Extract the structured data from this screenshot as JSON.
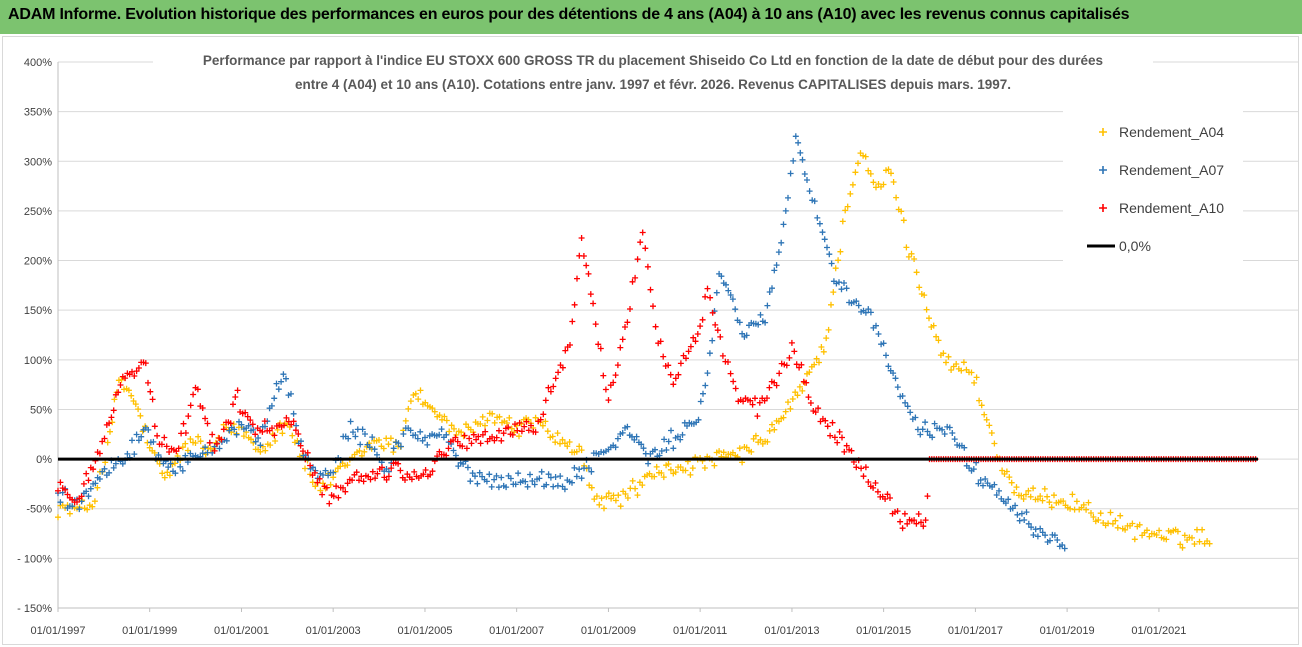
{
  "banner": {
    "title": "ADAM Informe. Evolution historique des performances en euros pour des détentions de 4 ans (A04) à 10 ans (A10) avec les revenus connus capitalisés"
  },
  "colors": {
    "banner_bg": "#7cc36f",
    "A04": "#ffc000",
    "A07": "#2e75b6",
    "A10": "#ff0000",
    "zero_line": "#000000"
  },
  "chart_data": {
    "type": "scatter",
    "title_lines": [
      "Performance par rapport à l'indice EU STOXX 600 GROSS TR  du placement Shiseido Co Ltd en fonction de la date de début pour des durées",
      "entre 4 (A04) et 10 ans (A10). Cotations entre janv. 1997 et févr. 2026. Revenus CAPITALISES depuis mars. 1997."
    ],
    "xlabel": "",
    "ylabel": "",
    "x_range": [
      "1997-01-01",
      "2023-03-01"
    ],
    "x_tick_labels": [
      "01/01/1997",
      "01/01/1999",
      "01/01/2001",
      "01/01/2003",
      "01/01/2005",
      "01/01/2007",
      "01/01/2009",
      "01/01/2011",
      "01/01/2013",
      "01/01/2015",
      "01/01/2017",
      "01/01/2019",
      "01/01/2021"
    ],
    "ylim": [
      -150,
      400
    ],
    "y_tick_labels": [
      "400%",
      "350%",
      "300%",
      "250%",
      "200%",
      "150%",
      "100%",
      "50%",
      "0%",
      "-50%",
      "- 100%",
      "- 150%"
    ],
    "grid": "horizontal",
    "legend_position": "top-right",
    "series": [
      {
        "name": "Rendement_A04",
        "marker": "+",
        "points": [
          [
            "1997-01-01",
            -48
          ],
          [
            "1997-06-01",
            -52
          ],
          [
            "1997-10-01",
            -45
          ],
          [
            "1998-02-01",
            10
          ],
          [
            "1998-05-01",
            80
          ],
          [
            "1998-07-01",
            70
          ],
          [
            "1998-10-01",
            50
          ],
          [
            "1999-01-01",
            10
          ],
          [
            "1999-05-01",
            -20
          ],
          [
            "1999-09-01",
            5
          ],
          [
            "2000-01-01",
            20
          ],
          [
            "2000-05-01",
            5
          ],
          [
            "2000-09-01",
            30
          ],
          [
            "2001-01-01",
            30
          ],
          [
            "2001-06-01",
            10
          ],
          [
            "2002-01-01",
            40
          ],
          [
            "2002-05-01",
            0
          ],
          [
            "2002-09-01",
            -30
          ],
          [
            "2003-01-01",
            -20
          ],
          [
            "2003-06-01",
            0
          ],
          [
            "2004-01-01",
            20
          ],
          [
            "2004-06-01",
            10
          ],
          [
            "2004-10-01",
            70
          ],
          [
            "2005-03-01",
            50
          ],
          [
            "2005-08-01",
            30
          ],
          [
            "2006-01-01",
            25
          ],
          [
            "2006-06-01",
            45
          ],
          [
            "2007-01-01",
            30
          ],
          [
            "2007-06-01",
            40
          ],
          [
            "2008-01-01",
            15
          ],
          [
            "2008-06-01",
            5
          ],
          [
            "2008-10-01",
            -45
          ],
          [
            "2009-03-01",
            -40
          ],
          [
            "2009-08-01",
            -30
          ],
          [
            "2010-01-01",
            -15
          ],
          [
            "2010-06-01",
            -10
          ],
          [
            "2011-01-01",
            -5
          ],
          [
            "2011-06-01",
            0
          ],
          [
            "2011-12-01",
            5
          ],
          [
            "2012-06-01",
            20
          ],
          [
            "2012-12-01",
            50
          ],
          [
            "2013-05-01",
            80
          ],
          [
            "2013-10-01",
            120
          ],
          [
            "2014-03-01",
            250
          ],
          [
            "2014-07-01",
            310
          ],
          [
            "2014-11-01",
            270
          ],
          [
            "2015-03-01",
            290
          ],
          [
            "2015-07-01",
            220
          ],
          [
            "2015-11-01",
            170
          ],
          [
            "2016-04-01",
            110
          ],
          [
            "2016-08-01",
            90
          ],
          [
            "2016-12-01",
            90
          ],
          [
            "2017-04-01",
            40
          ],
          [
            "2017-08-01",
            -10
          ],
          [
            "2018-01-01",
            -40
          ],
          [
            "2018-06-01",
            -40
          ],
          [
            "2018-12-01",
            -40
          ],
          [
            "2019-06-01",
            -50
          ],
          [
            "2020-01-01",
            -65
          ],
          [
            "2020-08-01",
            -72
          ],
          [
            "2021-03-01",
            -78
          ],
          [
            "2021-09-01",
            -80
          ],
          [
            "2022-03-01",
            -77
          ]
        ]
      },
      {
        "name": "Rendement_A07",
        "marker": "+",
        "points": [
          [
            "1997-01-01",
            -35
          ],
          [
            "1997-06-01",
            -45
          ],
          [
            "1997-12-01",
            -15
          ],
          [
            "1998-06-01",
            0
          ],
          [
            "1998-12-01",
            30
          ],
          [
            "1999-04-01",
            0
          ],
          [
            "1999-09-01",
            -10
          ],
          [
            "2000-01-01",
            5
          ],
          [
            "2000-06-01",
            15
          ],
          [
            "2001-01-01",
            35
          ],
          [
            "2001-06-01",
            20
          ],
          [
            "2001-12-01",
            90
          ],
          [
            "2002-04-01",
            20
          ],
          [
            "2002-09-01",
            -20
          ],
          [
            "2003-01-01",
            -15
          ],
          [
            "2003-05-01",
            30
          ],
          [
            "2003-10-01",
            20
          ],
          [
            "2004-03-01",
            -10
          ],
          [
            "2004-08-01",
            30
          ],
          [
            "2005-01-01",
            20
          ],
          [
            "2005-06-01",
            25
          ],
          [
            "2005-11-01",
            -10
          ],
          [
            "2006-04-01",
            -20
          ],
          [
            "2006-09-01",
            -20
          ],
          [
            "2007-02-01",
            -20
          ],
          [
            "2007-07-01",
            -20
          ],
          [
            "2008-01-01",
            -25
          ],
          [
            "2008-06-01",
            -10
          ],
          [
            "2009-01-01",
            10
          ],
          [
            "2009-06-01",
            30
          ],
          [
            "2009-12-01",
            0
          ],
          [
            "2010-06-01",
            20
          ],
          [
            "2010-12-01",
            40
          ],
          [
            "2011-03-01",
            80
          ],
          [
            "2011-06-01",
            190
          ],
          [
            "2011-09-01",
            160
          ],
          [
            "2011-12-01",
            130
          ],
          [
            "2012-06-01",
            140
          ],
          [
            "2012-09-01",
            200
          ],
          [
            "2012-12-01",
            260
          ],
          [
            "2013-02-01",
            330
          ],
          [
            "2013-05-01",
            280
          ],
          [
            "2013-09-01",
            230
          ],
          [
            "2013-12-01",
            180
          ],
          [
            "2014-04-01",
            160
          ],
          [
            "2014-09-01",
            150
          ],
          [
            "2015-01-01",
            110
          ],
          [
            "2015-06-01",
            60
          ],
          [
            "2015-10-01",
            30
          ],
          [
            "2016-03-01",
            30
          ],
          [
            "2016-07-01",
            30
          ],
          [
            "2016-12-01",
            -10
          ],
          [
            "2017-06-01",
            -30
          ],
          [
            "2017-12-01",
            -50
          ],
          [
            "2018-06-01",
            -75
          ],
          [
            "2019-01-01",
            -85
          ]
        ]
      },
      {
        "name": "Rendement_A10",
        "marker": "+",
        "points": [
          [
            "1997-01-01",
            -25
          ],
          [
            "1997-06-01",
            -40
          ],
          [
            "1997-12-01",
            10
          ],
          [
            "1998-06-01",
            80
          ],
          [
            "1998-12-01",
            100
          ],
          [
            "1999-03-01",
            20
          ],
          [
            "1999-08-01",
            0
          ],
          [
            "2000-01-01",
            70
          ],
          [
            "2000-06-01",
            10
          ],
          [
            "2000-12-01",
            60
          ],
          [
            "2001-04-01",
            30
          ],
          [
            "2001-09-01",
            30
          ],
          [
            "2002-02-01",
            40
          ],
          [
            "2002-07-01",
            -10
          ],
          [
            "2002-12-01",
            -40
          ],
          [
            "2003-06-01",
            -20
          ],
          [
            "2003-12-01",
            -15
          ],
          [
            "2004-06-01",
            -10
          ],
          [
            "2004-12-01",
            -20
          ],
          [
            "2005-06-01",
            10
          ],
          [
            "2005-12-01",
            20
          ],
          [
            "2006-06-01",
            20
          ],
          [
            "2006-12-01",
            30
          ],
          [
            "2007-06-01",
            30
          ],
          [
            "2007-10-01",
            70
          ],
          [
            "2008-03-01",
            120
          ],
          [
            "2008-06-01",
            220
          ],
          [
            "2008-09-01",
            150
          ],
          [
            "2009-01-01",
            60
          ],
          [
            "2009-06-01",
            140
          ],
          [
            "2009-10-01",
            230
          ],
          [
            "2010-02-01",
            120
          ],
          [
            "2010-06-01",
            80
          ],
          [
            "2010-10-01",
            110
          ],
          [
            "2011-01-01",
            130
          ],
          [
            "2011-03-01",
            170
          ],
          [
            "2011-07-01",
            110
          ],
          [
            "2011-11-01",
            60
          ],
          [
            "2012-04-01",
            50
          ],
          [
            "2012-09-01",
            80
          ],
          [
            "2013-01-01",
            110
          ],
          [
            "2013-06-01",
            60
          ],
          [
            "2013-11-01",
            30
          ],
          [
            "2014-04-01",
            10
          ],
          [
            "2014-09-01",
            -20
          ],
          [
            "2015-02-01",
            -40
          ],
          [
            "2015-06-01",
            -60
          ],
          [
            "2015-12-01",
            -65
          ],
          [
            "2016-01-01",
            0
          ],
          [
            "2016-12-01",
            0
          ],
          [
            "2018-01-01",
            0
          ],
          [
            "2019-01-01",
            0
          ],
          [
            "2020-01-01",
            0
          ],
          [
            "2021-01-01",
            0
          ],
          [
            "2022-01-01",
            0
          ],
          [
            "2023-03-01",
            0
          ]
        ]
      }
    ],
    "reference_lines": [
      {
        "name": "0,0%",
        "y": 0
      }
    ]
  }
}
